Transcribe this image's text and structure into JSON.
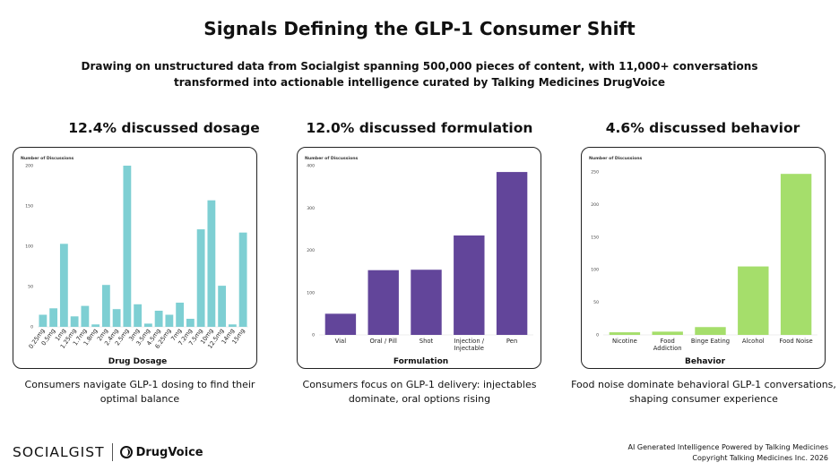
{
  "header": {
    "title": "Signals Defining the GLP-1 Consumer Shift",
    "subtitle": "Drawing on unstructured data from Socialgist spanning 500,000 pieces of content, with 11,000+ conversations transformed into actionable intelligence curated by Talking Medicines DrugVoice"
  },
  "panels": [
    {
      "heading": "12.4% discussed dosage",
      "caption": "Consumers navigate GLP-1 dosing to find their optimal balance"
    },
    {
      "heading": "12.0% discussed formulation",
      "caption": "Consumers focus on GLP-1 delivery: injectables dominate, oral options rising"
    },
    {
      "heading": "4.6% discussed behavior",
      "caption": "Food noise dominate behavioral GLP-1 conversations, shaping consumer experience"
    }
  ],
  "chart_data": [
    {
      "type": "bar",
      "ylabel": "Number of Discussions",
      "xlabel": "Drug Dosage",
      "categories": [
        "0.25mg",
        "0.5mg",
        "1mg",
        "1.25mg",
        "1.7mg",
        "1.8mg",
        "2mg",
        "2.4mg",
        "2.5mg",
        "3mg",
        "3.5mg",
        "4.5mg",
        "6.25mg",
        "7mg",
        "7.2mg",
        "7.5mg",
        "10mg",
        "12.5mg",
        "14mg",
        "15mg"
      ],
      "values": [
        15,
        23,
        103,
        13,
        26,
        3,
        52,
        22,
        200,
        28,
        4,
        20,
        15,
        30,
        10,
        121,
        157,
        51,
        3,
        117
      ],
      "ylim": [
        0,
        200
      ],
      "yticks": [
        0,
        50,
        100,
        150,
        200
      ],
      "color": "#7ecfd3",
      "grid": false
    },
    {
      "type": "bar",
      "ylabel": "Number of Discussions",
      "xlabel": "Formulation",
      "categories": [
        "Vial",
        "Oral / Pill",
        "Shot",
        "Injection / Injectable",
        "Pen"
      ],
      "values": [
        50,
        153,
        154,
        235,
        385
      ],
      "ylim": [
        0,
        400
      ],
      "yticks": [
        0,
        100,
        200,
        300,
        400
      ],
      "color": "#62459a",
      "grid": false
    },
    {
      "type": "bar",
      "ylabel": "Number of Discussions",
      "xlabel": "Behavior",
      "categories": [
        "Nicotine",
        "Food Addiction",
        "Binge Eating",
        "Alcohol",
        "Food Noise"
      ],
      "values": [
        4,
        5,
        12,
        105,
        247
      ],
      "ylim": [
        0,
        250
      ],
      "yticks": [
        0,
        50,
        100,
        150,
        200,
        250
      ],
      "color": "#a5de6b",
      "grid": false
    }
  ],
  "footer": {
    "brand_left": "SOCIALGIST",
    "brand_right": "DrugVoice",
    "line1": "AI Generated Intelligence Powered by Talking Medicines",
    "line2": "Copyright Talking Medicines Inc. 2026"
  }
}
